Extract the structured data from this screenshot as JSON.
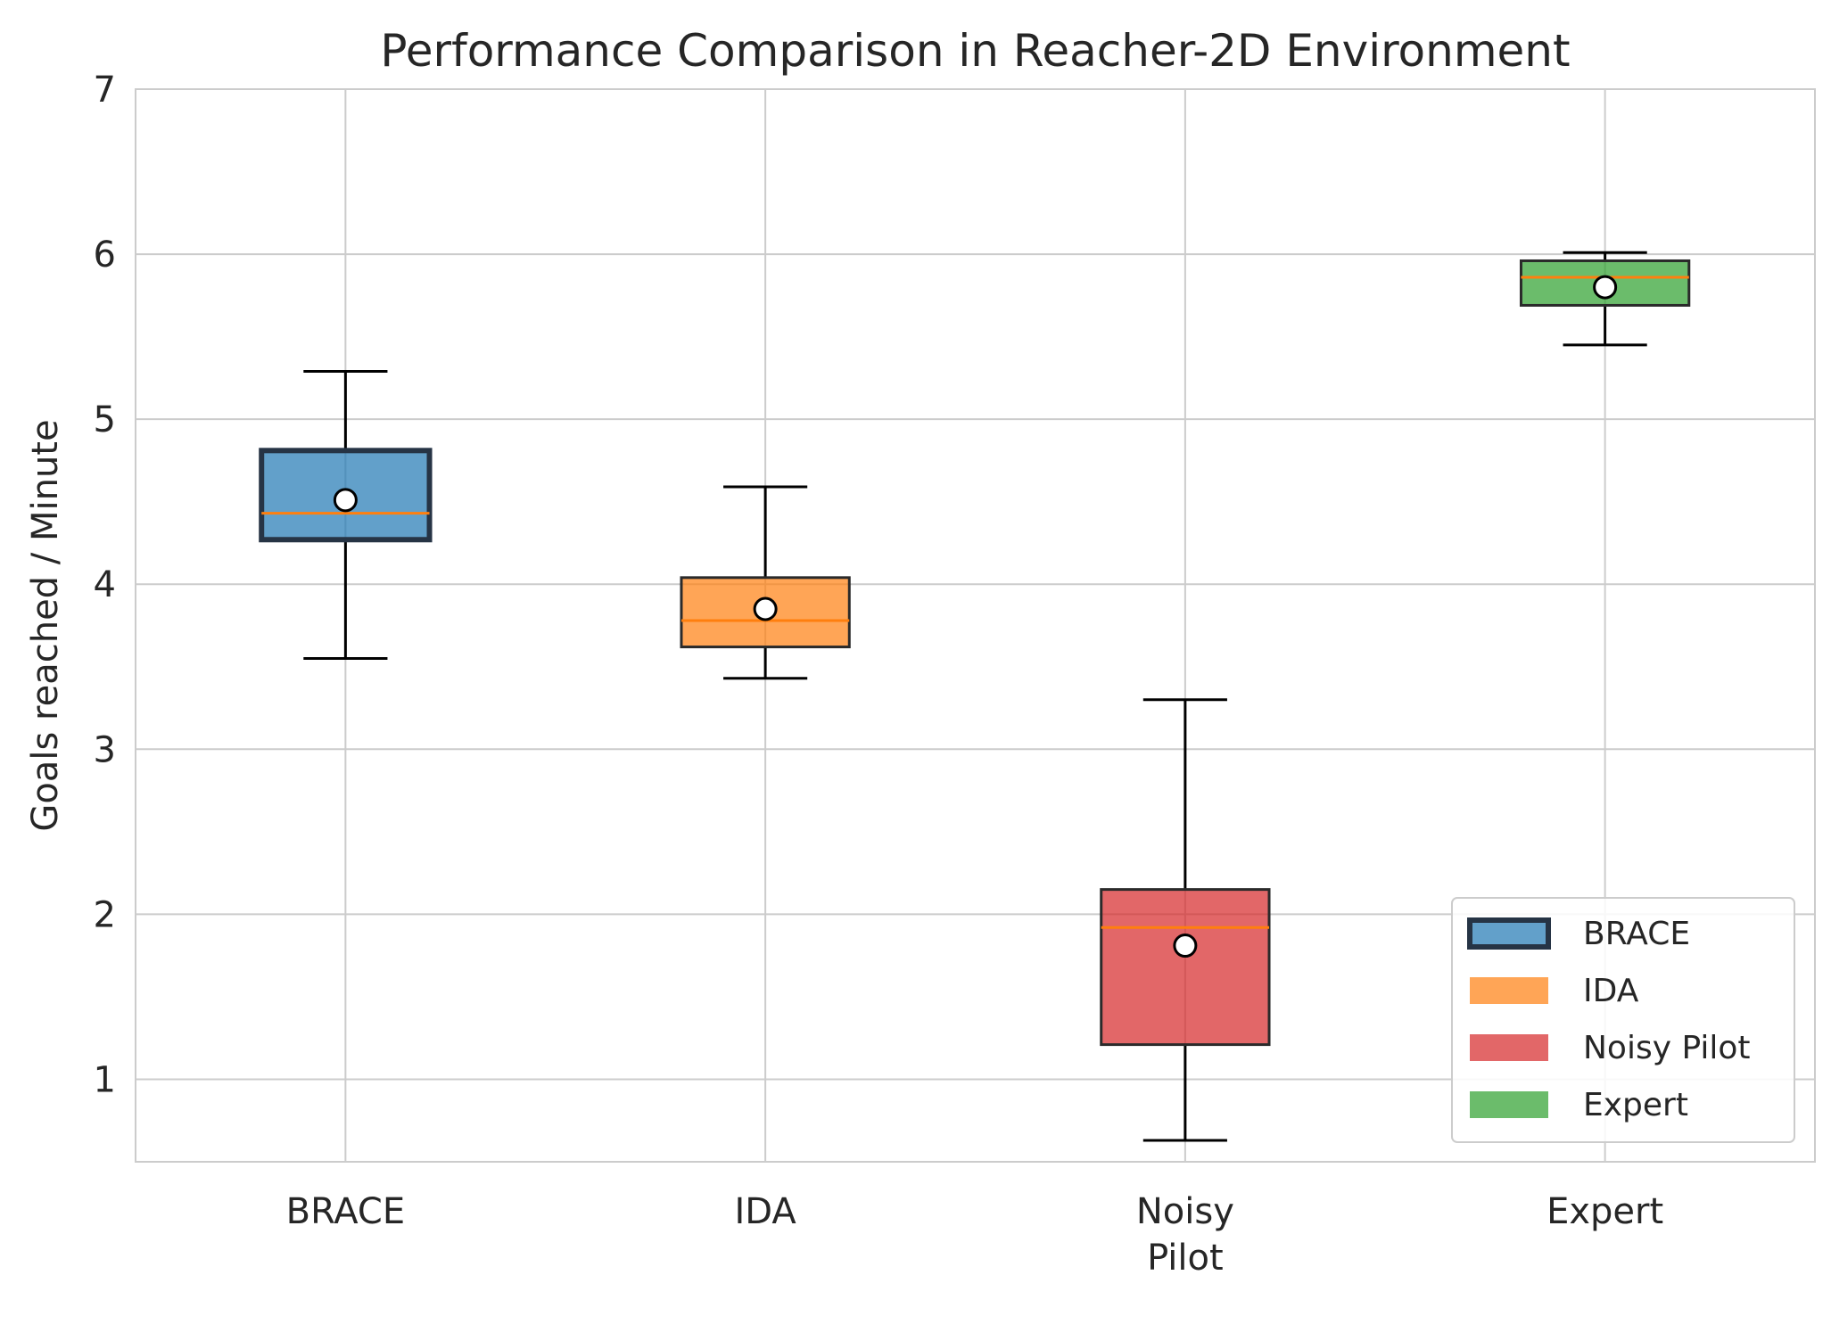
{
  "chart_data": {
    "type": "box",
    "title": "Performance Comparison in Reacher-2D Environment",
    "xlabel": "",
    "ylabel": "Goals reached / Minute",
    "ylim": [
      0.5,
      7
    ],
    "yticks": [
      1,
      2,
      3,
      4,
      5,
      6,
      7
    ],
    "grid": true,
    "legend_position": "lower-right",
    "categories": [
      {
        "label_lines": [
          "BRACE"
        ]
      },
      {
        "label_lines": [
          "IDA"
        ]
      },
      {
        "label_lines": [
          "Noisy",
          "Pilot"
        ]
      },
      {
        "label_lines": [
          "Expert"
        ]
      }
    ],
    "series": [
      {
        "name": "BRACE",
        "color": "#1f77b4",
        "whisker_low": 3.55,
        "q1": 4.27,
        "median": 4.43,
        "q3": 4.81,
        "whisker_high": 5.29,
        "mean": 4.51
      },
      {
        "name": "IDA",
        "color": "#ff7f0e",
        "whisker_low": 3.43,
        "q1": 3.62,
        "median": 3.78,
        "q3": 4.04,
        "whisker_high": 4.59,
        "mean": 3.85
      },
      {
        "name": "Noisy Pilot",
        "color": "#d62728",
        "whisker_low": 0.63,
        "q1": 1.21,
        "median": 1.92,
        "q3": 2.15,
        "whisker_high": 3.3,
        "mean": 1.81
      },
      {
        "name": "Expert",
        "color": "#2ca02c",
        "whisker_low": 5.45,
        "q1": 5.69,
        "median": 5.86,
        "q3": 5.96,
        "whisker_high": 6.01,
        "mean": 5.8
      }
    ],
    "median_color": "#ff7f0e",
    "legend": [
      "BRACE",
      "IDA",
      "Noisy Pilot",
      "Expert"
    ]
  }
}
